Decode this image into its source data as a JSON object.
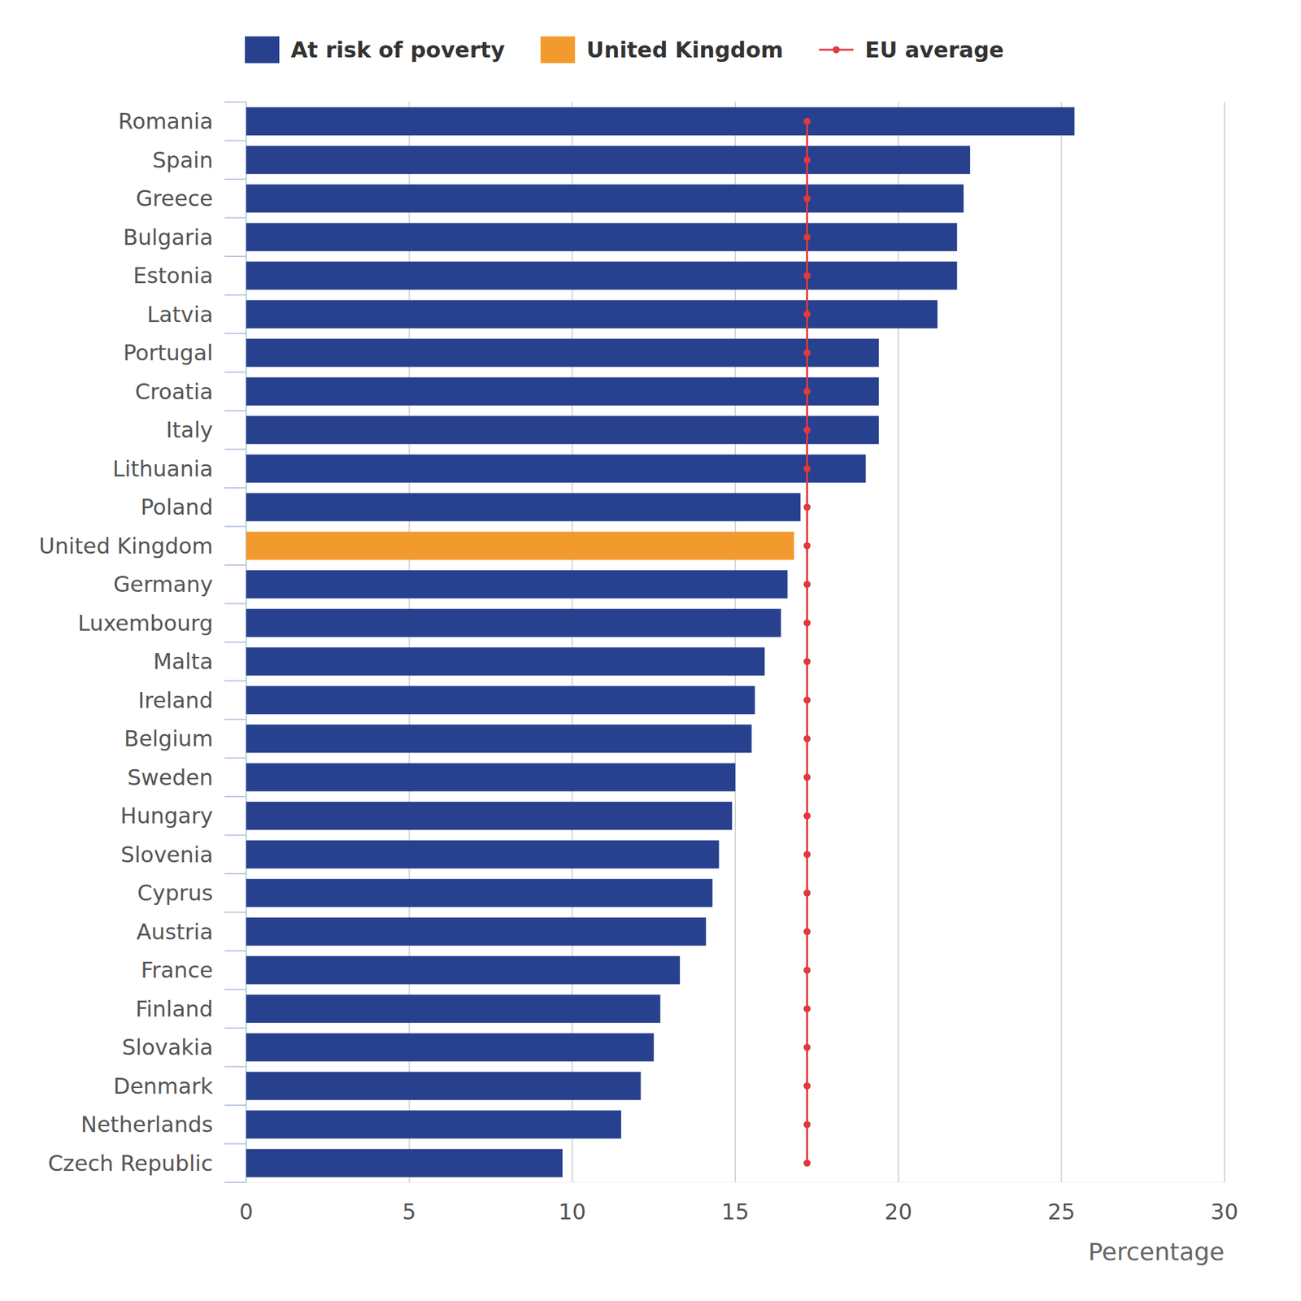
{
  "chart_data": {
    "type": "bar",
    "orientation": "horizontal",
    "x_label": "Percentage",
    "categories": [
      "Romania",
      "Spain",
      "Greece",
      "Bulgaria",
      "Estonia",
      "Latvia",
      "Portugal",
      "Croatia",
      "Italy",
      "Lithuania",
      "Poland",
      "United Kingdom",
      "Germany",
      "Luxembourg",
      "Malta",
      "Ireland",
      "Belgium",
      "Sweden",
      "Hungary",
      "Slovenia",
      "Cyprus",
      "Austria",
      "France",
      "Finland",
      "Slovakia",
      "Denmark",
      "Netherlands",
      "Czech Republic"
    ],
    "series": [
      {
        "name": "At risk of poverty",
        "type": "bar",
        "color": "#27418f",
        "values": [
          25.4,
          22.2,
          22.0,
          21.8,
          21.8,
          21.2,
          19.4,
          19.4,
          19.4,
          19.0,
          17.0,
          null,
          16.6,
          16.4,
          15.9,
          15.6,
          15.5,
          15.0,
          14.9,
          14.5,
          14.3,
          14.1,
          13.3,
          12.7,
          12.5,
          12.1,
          11.5,
          9.7
        ]
      },
      {
        "name": "United Kingdom",
        "type": "bar",
        "color": "#f39a2e",
        "values": [
          null,
          null,
          null,
          null,
          null,
          null,
          null,
          null,
          null,
          null,
          null,
          16.8,
          null,
          null,
          null,
          null,
          null,
          null,
          null,
          null,
          null,
          null,
          null,
          null,
          null,
          null,
          null,
          null
        ]
      },
      {
        "name": "EU average",
        "type": "line",
        "color": "#e0393e",
        "marker": "circle",
        "values": [
          17.2,
          17.2,
          17.2,
          17.2,
          17.2,
          17.2,
          17.2,
          17.2,
          17.2,
          17.2,
          17.2,
          17.2,
          17.2,
          17.2,
          17.2,
          17.2,
          17.2,
          17.2,
          17.2,
          17.2,
          17.2,
          17.2,
          17.2,
          17.2,
          17.2,
          17.2,
          17.2,
          17.2
        ]
      }
    ],
    "xlim": [
      0,
      30
    ],
    "xticks": [
      0,
      5,
      10,
      15,
      20,
      25,
      30
    ],
    "grid": true,
    "legend": "top"
  }
}
